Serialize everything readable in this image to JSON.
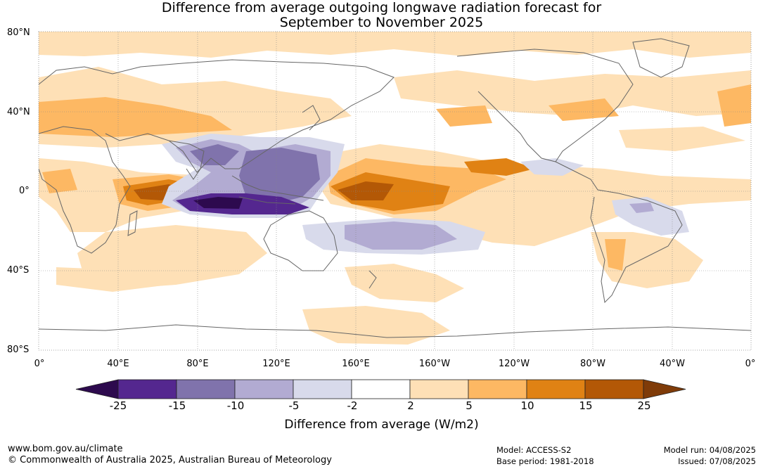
{
  "title_line1": "Difference from average outgoing longwave radiation forecast for",
  "title_line2": "September to November 2025",
  "lat_labels": [
    "80°N",
    "40°N",
    "0°",
    "40°S",
    "80°S"
  ],
  "lon_labels": [
    "0°",
    "40°E",
    "80°E",
    "120°E",
    "160°E",
    "160°W",
    "120°W",
    "80°W",
    "40°W",
    "0°"
  ],
  "colorbar": {
    "title": "Difference from average (W/m2)",
    "tick_labels": [
      "-25",
      "-15",
      "-10",
      "-5",
      "-2",
      "2",
      "5",
      "10",
      "15",
      "25"
    ],
    "colors": [
      "#2d0a4e",
      "#54278f",
      "#8073ac",
      "#b2abd2",
      "#d8daeb",
      "#ffffff",
      "#fee0b6",
      "#fdb863",
      "#e08214",
      "#b35806",
      "#7f3b08"
    ]
  },
  "footer": {
    "url": "www.bom.gov.au/climate",
    "copyright": "© Commonwealth of Australia 2025, Australian Bureau of Meteorology",
    "model": "Model: ACCESS-S2",
    "base_period": "Base period: 1981-2018",
    "model_run": "Model run: 04/08/2025",
    "issued": "Issued: 07/08/2025"
  }
}
